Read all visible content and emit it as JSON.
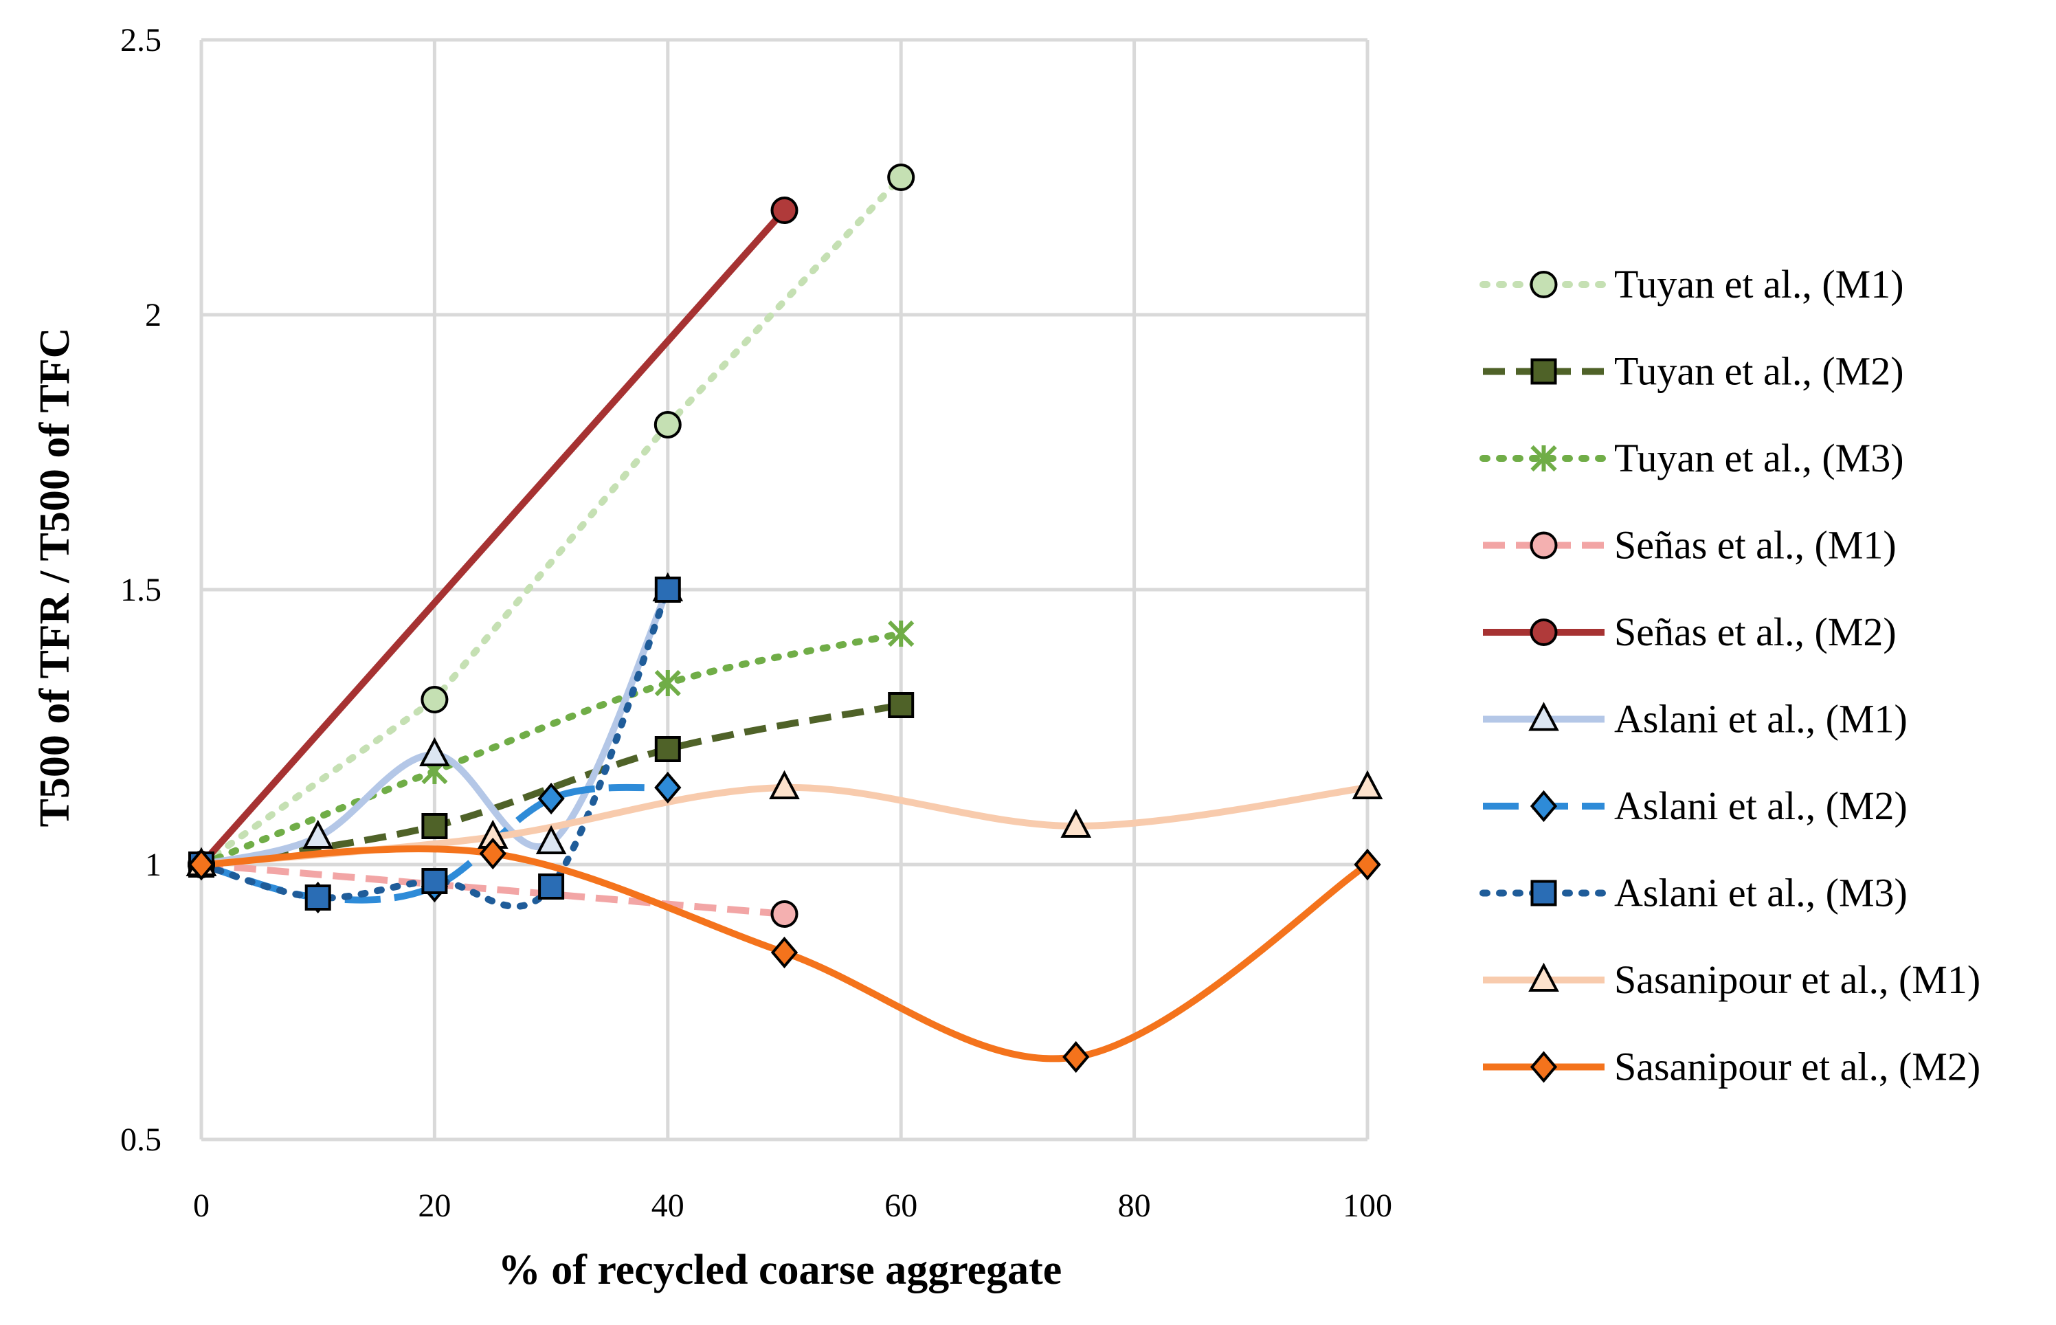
{
  "chart_data": {
    "type": "line",
    "title": "",
    "xlabel": "% of recycled coarse aggregate",
    "ylabel": "T500 of TFR / T500 of TFC",
    "xlim": [
      0,
      100
    ],
    "ylim": [
      0.5,
      2.5
    ],
    "xticks": [
      "0",
      "20",
      "40",
      "60",
      "80",
      "100"
    ],
    "yticks": [
      "0.5",
      "1",
      "1.5",
      "2",
      "2.5"
    ],
    "xtick_values": [
      0,
      20,
      40,
      60,
      80,
      100
    ],
    "ytick_values": [
      0.5,
      1,
      1.5,
      2,
      2.5
    ],
    "grid": true,
    "legend_position": "right",
    "series": [
      {
        "name": "Tuyan et al., (M1)",
        "color": "#c5e0b3",
        "dash": "dot",
        "smooth": false,
        "marker": "circle",
        "marker_fill": "#c5e0b3",
        "x": [
          0,
          20,
          40,
          60
        ],
        "y": [
          1.0,
          1.3,
          1.8,
          2.25
        ]
      },
      {
        "name": "Tuyan et al., (M2)",
        "color": "#4f6228",
        "dash": "dash",
        "smooth": true,
        "marker": "square",
        "marker_fill": "#4f6228",
        "x": [
          0,
          20,
          40,
          60
        ],
        "y": [
          1.0,
          1.07,
          1.21,
          1.29
        ]
      },
      {
        "name": "Tuyan et al., (M3)",
        "color": "#70ad47",
        "dash": "dot",
        "smooth": true,
        "marker": "star",
        "marker_fill": "#70ad47",
        "x": [
          0,
          20,
          40,
          60
        ],
        "y": [
          1.0,
          1.17,
          1.33,
          1.42
        ]
      },
      {
        "name": "Señas et al., (M1)",
        "color": "#f2a5a5",
        "dash": "dash",
        "smooth": true,
        "marker": "circle",
        "marker_fill": "#f4b0b0",
        "x": [
          0,
          50
        ],
        "y": [
          1.0,
          0.91
        ]
      },
      {
        "name": "Señas et al., (M2)",
        "color": "#a63232",
        "dash": "solid",
        "smooth": false,
        "marker": "circle",
        "marker_fill": "#b03a3a",
        "x": [
          0,
          50
        ],
        "y": [
          1.0,
          2.19
        ]
      },
      {
        "name": "Aslani et al., (M1)",
        "color": "#b4c7e7",
        "dash": "solid",
        "smooth": true,
        "marker": "triangle",
        "marker_fill": "#dce6f2",
        "x": [
          0,
          10,
          20,
          30,
          40
        ],
        "y": [
          1.0,
          1.05,
          1.2,
          1.04,
          1.5
        ]
      },
      {
        "name": "Aslani et al., (M2)",
        "color": "#2e8bd8",
        "dash": "longdash",
        "smooth": true,
        "marker": "diamond",
        "marker_fill": "#2e8bd8",
        "x": [
          0,
          10,
          20,
          30,
          40
        ],
        "y": [
          1.0,
          0.94,
          0.96,
          1.12,
          1.14
        ]
      },
      {
        "name": "Aslani et al., (M3)",
        "color": "#1f5c99",
        "dash": "dot",
        "smooth": true,
        "marker": "square",
        "marker_fill": "#2a6db5",
        "x": [
          0,
          10,
          20,
          30,
          40
        ],
        "y": [
          1.0,
          0.94,
          0.97,
          0.96,
          1.5
        ]
      },
      {
        "name": "Sasanipour et al., (M1)",
        "color": "#f8cbad",
        "dash": "solid",
        "smooth": true,
        "marker": "triangle",
        "marker_fill": "#fde2cc",
        "x": [
          0,
          25,
          50,
          75,
          100
        ],
        "y": [
          1.0,
          1.05,
          1.14,
          1.07,
          1.14
        ]
      },
      {
        "name": "Sasanipour et al., (M2)",
        "color": "#f4731c",
        "dash": "solid",
        "smooth": true,
        "marker": "diamond",
        "marker_fill": "#f4731c",
        "x": [
          0,
          25,
          50,
          75,
          100
        ],
        "y": [
          1.0,
          1.02,
          0.84,
          0.65,
          1.0
        ]
      }
    ]
  }
}
